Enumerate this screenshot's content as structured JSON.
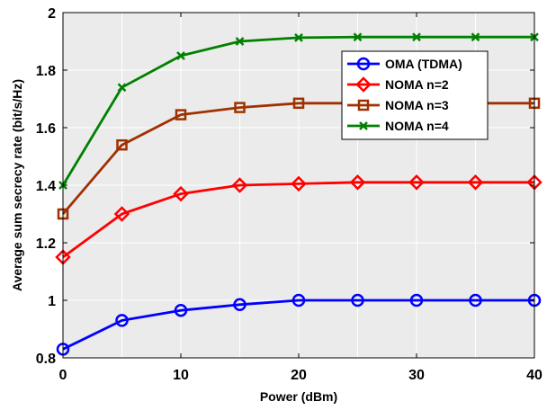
{
  "chart_data": {
    "type": "line",
    "xlabel": "Power (dBm)",
    "ylabel": "Average sum secrecy rate (bit/s/Hz)",
    "xlim": [
      0,
      40
    ],
    "ylim": [
      0.8,
      2
    ],
    "x_ticks": [
      0,
      10,
      20,
      30,
      40
    ],
    "y_ticks": [
      0.8,
      1,
      1.2,
      1.4,
      1.6,
      1.8,
      2
    ],
    "grid": true,
    "legend_position": "top-right",
    "x": [
      0,
      5,
      10,
      15,
      20,
      25,
      30,
      35,
      40
    ],
    "series": [
      {
        "name": "OMA (TDMA)",
        "color": "#0000ff",
        "marker": "circle",
        "values": [
          0.83,
          0.93,
          0.965,
          0.985,
          1.0,
          1.0,
          1.0,
          1.0,
          1.0
        ]
      },
      {
        "name": "NOMA n=2",
        "color": "#ff0000",
        "marker": "diamond",
        "values": [
          1.15,
          1.3,
          1.37,
          1.4,
          1.405,
          1.41,
          1.41,
          1.41,
          1.41
        ]
      },
      {
        "name": "NOMA n=3",
        "color": "#a03000",
        "marker": "square",
        "values": [
          1.3,
          1.54,
          1.645,
          1.67,
          1.685,
          1.685,
          1.685,
          1.685,
          1.685
        ]
      },
      {
        "name": "NOMA n=4",
        "color": "#008000",
        "marker": "x",
        "values": [
          1.4,
          1.74,
          1.85,
          1.9,
          1.913,
          1.915,
          1.915,
          1.915,
          1.915
        ]
      }
    ]
  }
}
